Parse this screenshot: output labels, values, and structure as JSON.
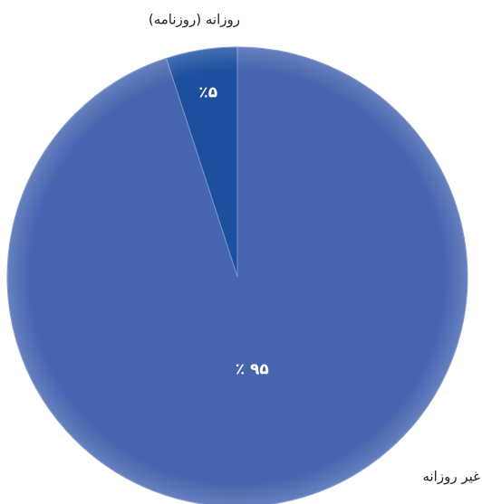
{
  "chart_data": {
    "type": "pie",
    "categories": [
      "روزانه (روزنامه)",
      "غیر روزانه"
    ],
    "values": [
      5,
      95
    ],
    "value_labels": [
      "٪۵",
      "٪ ۹۵"
    ],
    "colors": [
      "#1c4f9e",
      "#4565b0"
    ]
  }
}
